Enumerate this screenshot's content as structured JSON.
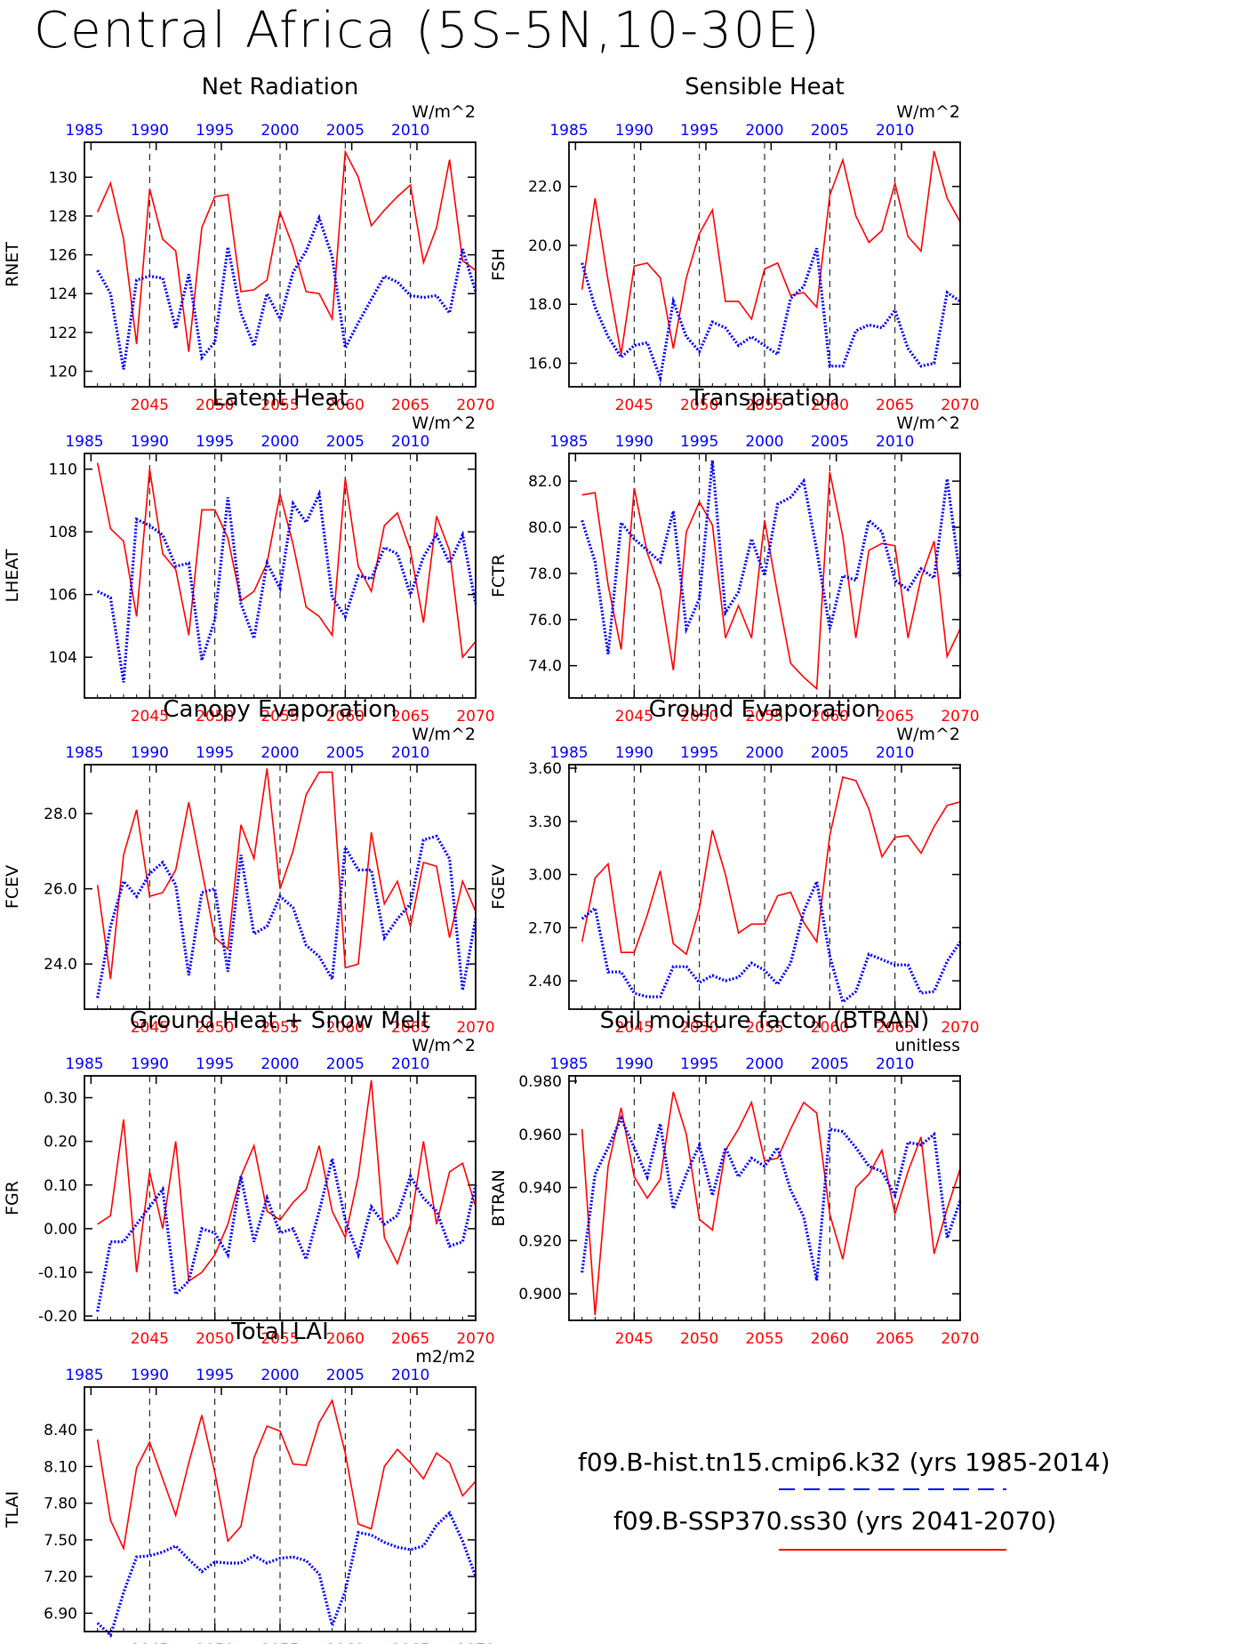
{
  "figure": {
    "title": "Central Africa (5S-5N,10-30E)",
    "hist_years": [
      "1985",
      "1990",
      "1995",
      "2000",
      "2005",
      "2010"
    ],
    "future_years": [
      "2045",
      "2050",
      "2055",
      "2060",
      "2065",
      "2070"
    ],
    "colors": {
      "hist": "#0000ff",
      "future": "#ff0000"
    }
  },
  "legend": {
    "hist_label": "f09.B-hist.tn15.cmip6.k32 (yrs 1985-2014)",
    "future_label": "f09.B-SSP370.ss30 (yrs 2041-2070)"
  },
  "chart_data": [
    {
      "type": "line",
      "title": "Net Radiation",
      "ylabel": "RNET",
      "units": "W/m^2",
      "ylim": [
        119.2,
        131.8
      ],
      "yticks": [
        120,
        122,
        124,
        126,
        128,
        130
      ],
      "ytick_labels": [
        "120",
        "122",
        "124",
        "126",
        "128",
        "130"
      ],
      "series": [
        {
          "name": "f09.B-SSP370.ss30",
          "values": [
            128.2,
            129.7,
            126.8,
            121.4,
            129.4,
            126.8,
            126.2,
            121.0,
            127.4,
            129.0,
            129.1,
            124.1,
            124.2,
            124.7,
            128.2,
            126.4,
            124.1,
            124.0,
            122.7,
            131.3,
            130.0,
            127.5,
            128.3,
            129.0,
            129.6,
            125.6,
            127.4,
            130.9,
            125.7,
            125.2
          ]
        },
        {
          "name": "f09.B-hist.tn15.cmip6.k32",
          "values": [
            125.2,
            124.0,
            120.1,
            124.7,
            124.9,
            124.8,
            122.2,
            125.0,
            120.7,
            121.5,
            126.4,
            123.0,
            121.3,
            124.0,
            122.7,
            125.1,
            126.2,
            127.9,
            125.9,
            121.2,
            122.5,
            123.7,
            124.9,
            124.6,
            123.9,
            123.8,
            123.9,
            123.0,
            126.3,
            124.1
          ]
        }
      ]
    },
    {
      "type": "line",
      "title": "Sensible Heat",
      "ylabel": "FSH",
      "units": "W/m^2",
      "ylim": [
        15.2,
        23.5
      ],
      "yticks": [
        16,
        18,
        20,
        22
      ],
      "ytick_labels": [
        "16.0",
        "18.0",
        "20.0",
        "22.0"
      ],
      "series": [
        {
          "name": "f09.B-SSP370.ss30",
          "values": [
            18.5,
            21.6,
            18.8,
            16.3,
            19.3,
            19.4,
            18.9,
            16.5,
            18.9,
            20.4,
            21.2,
            18.1,
            18.1,
            17.5,
            19.2,
            19.4,
            18.3,
            18.4,
            17.9,
            21.7,
            22.9,
            21.0,
            20.1,
            20.5,
            22.1,
            20.3,
            19.8,
            23.2,
            21.6,
            20.8
          ]
        },
        {
          "name": "f09.B-hist.tn15.cmip6.k32",
          "values": [
            19.4,
            17.9,
            16.9,
            16.2,
            16.6,
            16.7,
            15.5,
            18.1,
            16.9,
            16.4,
            17.4,
            17.2,
            16.6,
            16.9,
            16.6,
            16.3,
            18.2,
            18.6,
            19.9,
            15.9,
            15.9,
            17.1,
            17.3,
            17.2,
            17.8,
            16.5,
            15.9,
            16.0,
            18.4,
            18.1
          ]
        }
      ]
    },
    {
      "type": "line",
      "title": "Latent Heat",
      "ylabel": "LHEAT",
      "units": "W/m^2",
      "ylim": [
        102.7,
        110.5
      ],
      "yticks": [
        104,
        106,
        108,
        110
      ],
      "ytick_labels": [
        "104",
        "106",
        "108",
        "110"
      ],
      "series": [
        {
          "name": "f09.B-SSP370.ss30",
          "values": [
            110.2,
            108.1,
            107.7,
            105.3,
            110.0,
            107.3,
            106.8,
            104.7,
            108.7,
            108.7,
            107.8,
            105.8,
            106.1,
            107.0,
            109.2,
            107.6,
            105.6,
            105.3,
            104.7,
            109.7,
            106.9,
            106.1,
            108.2,
            108.6,
            107.4,
            105.1,
            108.5,
            107.4,
            104.0,
            104.5
          ]
        },
        {
          "name": "f09.B-hist.tn15.cmip6.k32",
          "values": [
            106.1,
            105.9,
            103.2,
            108.4,
            108.2,
            107.9,
            106.9,
            107.0,
            103.9,
            105.2,
            109.1,
            105.7,
            104.6,
            107.0,
            106.2,
            108.9,
            108.3,
            109.2,
            105.9,
            105.3,
            106.6,
            106.5,
            107.5,
            107.3,
            106.0,
            107.2,
            107.9,
            107.0,
            107.9,
            105.7
          ]
        }
      ]
    },
    {
      "type": "line",
      "title": "Transpiration",
      "ylabel": "FCTR",
      "units": "W/m^2",
      "ylim": [
        72.6,
        83.2
      ],
      "yticks": [
        74,
        76,
        78,
        80,
        82
      ],
      "ytick_labels": [
        "74.0",
        "76.0",
        "78.0",
        "80.0",
        "82.0"
      ],
      "series": [
        {
          "name": "f09.B-SSP370.ss30",
          "values": [
            81.4,
            81.5,
            77.5,
            74.7,
            81.7,
            78.9,
            77.3,
            73.8,
            79.8,
            81.1,
            80.1,
            75.2,
            76.6,
            75.2,
            80.3,
            77.1,
            74.1,
            73.5,
            73.0,
            82.4,
            79.6,
            75.2,
            79.0,
            79.3,
            79.2,
            75.2,
            77.8,
            79.4,
            74.4,
            75.6
          ]
        },
        {
          "name": "f09.B-hist.tn15.cmip6.k32",
          "values": [
            80.3,
            78.5,
            74.5,
            80.2,
            79.5,
            79.0,
            78.5,
            80.7,
            75.6,
            76.9,
            82.9,
            76.3,
            77.2,
            79.5,
            77.9,
            81.0,
            81.3,
            82.0,
            79.0,
            75.6,
            77.9,
            77.7,
            80.3,
            79.8,
            77.7,
            77.3,
            78.2,
            77.8,
            82.1,
            77.8
          ]
        }
      ]
    },
    {
      "type": "line",
      "title": "Canopy Evaporation",
      "ylabel": "FCEV",
      "units": "W/m^2",
      "ylim": [
        22.8,
        29.3
      ],
      "yticks": [
        24,
        26,
        28
      ],
      "ytick_labels": [
        "24.0",
        "26.0",
        "28.0"
      ],
      "series": [
        {
          "name": "f09.B-SSP370.ss30",
          "values": [
            26.1,
            23.6,
            26.9,
            28.1,
            25.8,
            25.9,
            26.5,
            28.3,
            26.5,
            24.7,
            24.4,
            27.7,
            26.8,
            29.2,
            26.0,
            27.0,
            28.5,
            29.1,
            29.1,
            23.9,
            24.0,
            27.5,
            25.6,
            26.2,
            25.0,
            26.7,
            26.6,
            24.7,
            26.2,
            25.4
          ]
        },
        {
          "name": "f09.B-hist.tn15.cmip6.k32",
          "values": [
            23.1,
            25.0,
            26.2,
            25.8,
            26.4,
            26.7,
            26.1,
            23.7,
            25.9,
            26.0,
            23.8,
            26.9,
            24.8,
            25.0,
            25.8,
            25.5,
            24.5,
            24.2,
            23.6,
            27.1,
            26.5,
            26.5,
            24.7,
            25.2,
            25.6,
            27.3,
            27.4,
            26.8,
            23.3,
            25.2
          ]
        }
      ]
    },
    {
      "type": "line",
      "title": "Ground Evaporation",
      "ylabel": "FGEV",
      "units": "W/m^2",
      "ylim": [
        2.24,
        3.62
      ],
      "yticks": [
        2.4,
        2.7,
        3.0,
        3.3,
        3.6
      ],
      "ytick_labels": [
        "2.40",
        "2.70",
        "3.00",
        "3.30",
        "3.60"
      ],
      "series": [
        {
          "name": "f09.B-SSP370.ss30",
          "values": [
            2.62,
            2.98,
            3.06,
            2.56,
            2.56,
            2.77,
            3.02,
            2.61,
            2.55,
            2.81,
            3.25,
            3.0,
            2.67,
            2.72,
            2.72,
            2.88,
            2.9,
            2.73,
            2.62,
            3.22,
            3.55,
            3.53,
            3.37,
            3.1,
            3.21,
            3.22,
            3.12,
            3.27,
            3.39,
            3.41
          ]
        },
        {
          "name": "f09.B-hist.tn15.cmip6.k32",
          "values": [
            2.75,
            2.81,
            2.45,
            2.45,
            2.33,
            2.31,
            2.31,
            2.48,
            2.48,
            2.39,
            2.43,
            2.4,
            2.42,
            2.5,
            2.46,
            2.38,
            2.5,
            2.79,
            2.96,
            2.54,
            2.28,
            2.34,
            2.55,
            2.52,
            2.49,
            2.49,
            2.33,
            2.34,
            2.51,
            2.62
          ]
        }
      ]
    },
    {
      "type": "line",
      "title": "Ground Heat + Snow Melt",
      "ylabel": "FGR",
      "units": "W/m^2",
      "ylim": [
        -0.21,
        0.35
      ],
      "yticks": [
        -0.2,
        -0.1,
        0.0,
        0.1,
        0.2,
        0.3
      ],
      "ytick_labels": [
        "-0.20",
        "-0.10",
        "0.00",
        "0.10",
        "0.20",
        "0.30"
      ],
      "series": [
        {
          "name": "f09.B-SSP370.ss30",
          "values": [
            0.01,
            0.03,
            0.25,
            -0.1,
            0.13,
            0.0,
            0.2,
            -0.12,
            -0.1,
            -0.06,
            0.01,
            0.12,
            0.19,
            0.04,
            0.02,
            0.06,
            0.09,
            0.19,
            0.04,
            -0.02,
            0.12,
            0.34,
            -0.02,
            -0.08,
            0.01,
            0.2,
            0.01,
            0.13,
            0.15,
            0.05
          ]
        },
        {
          "name": "f09.B-hist.tn15.cmip6.k32",
          "values": [
            -0.19,
            -0.03,
            -0.03,
            0.01,
            0.05,
            0.09,
            -0.15,
            -0.12,
            0.0,
            -0.01,
            -0.06,
            0.12,
            -0.03,
            0.07,
            -0.01,
            0.0,
            -0.07,
            0.04,
            0.16,
            0.02,
            -0.06,
            0.05,
            0.01,
            0.03,
            0.12,
            0.07,
            0.04,
            -0.04,
            -0.03,
            0.1
          ]
        }
      ]
    },
    {
      "type": "line",
      "title": "Soil moisture factor (BTRAN)",
      "ylabel": "BTRAN",
      "units": "unitless",
      "ylim": [
        0.89,
        0.982
      ],
      "yticks": [
        0.9,
        0.92,
        0.94,
        0.96,
        0.98
      ],
      "ytick_labels": [
        "0.900",
        "0.920",
        "0.940",
        "0.960",
        "0.980"
      ],
      "series": [
        {
          "name": "f09.B-SSP370.ss30",
          "values": [
            0.962,
            0.892,
            0.948,
            0.97,
            0.944,
            0.936,
            0.943,
            0.976,
            0.96,
            0.928,
            0.924,
            0.954,
            0.962,
            0.972,
            0.95,
            0.951,
            0.962,
            0.972,
            0.968,
            0.93,
            0.913,
            0.94,
            0.945,
            0.954,
            0.93,
            0.946,
            0.959,
            0.915,
            0.932,
            0.947
          ]
        },
        {
          "name": "f09.B-hist.tn15.cmip6.k32",
          "values": [
            0.908,
            0.945,
            0.955,
            0.966,
            0.955,
            0.944,
            0.964,
            0.932,
            0.945,
            0.956,
            0.937,
            0.955,
            0.944,
            0.951,
            0.948,
            0.955,
            0.939,
            0.929,
            0.905,
            0.962,
            0.961,
            0.955,
            0.948,
            0.946,
            0.937,
            0.957,
            0.956,
            0.96,
            0.921,
            0.935
          ]
        }
      ]
    },
    {
      "type": "line",
      "title": "Total LAI",
      "ylabel": "TLAI",
      "units": "m2/m2",
      "ylim": [
        6.75,
        8.75
      ],
      "yticks": [
        6.9,
        7.2,
        7.5,
        7.8,
        8.1,
        8.4
      ],
      "ytick_labels": [
        "6.90",
        "7.20",
        "7.50",
        "7.80",
        "8.10",
        "8.40"
      ],
      "series": [
        {
          "name": "f09.B-SSP370.ss30",
          "values": [
            8.32,
            7.66,
            7.43,
            8.09,
            8.3,
            8.0,
            7.7,
            8.13,
            8.52,
            8.05,
            7.49,
            7.61,
            8.17,
            8.43,
            8.39,
            8.12,
            8.11,
            8.46,
            8.64,
            8.21,
            7.63,
            7.59,
            8.1,
            8.24,
            8.13,
            8.0,
            8.21,
            8.13,
            7.86,
            7.98
          ]
        },
        {
          "name": "f09.B-hist.tn15.cmip6.k32",
          "values": [
            6.82,
            6.72,
            7.07,
            7.36,
            7.37,
            7.4,
            7.45,
            7.34,
            7.24,
            7.32,
            7.31,
            7.31,
            7.37,
            7.31,
            7.35,
            7.36,
            7.33,
            7.22,
            6.8,
            7.08,
            7.56,
            7.54,
            7.48,
            7.44,
            7.42,
            7.45,
            7.62,
            7.72,
            7.49,
            7.2
          ]
        }
      ]
    }
  ]
}
